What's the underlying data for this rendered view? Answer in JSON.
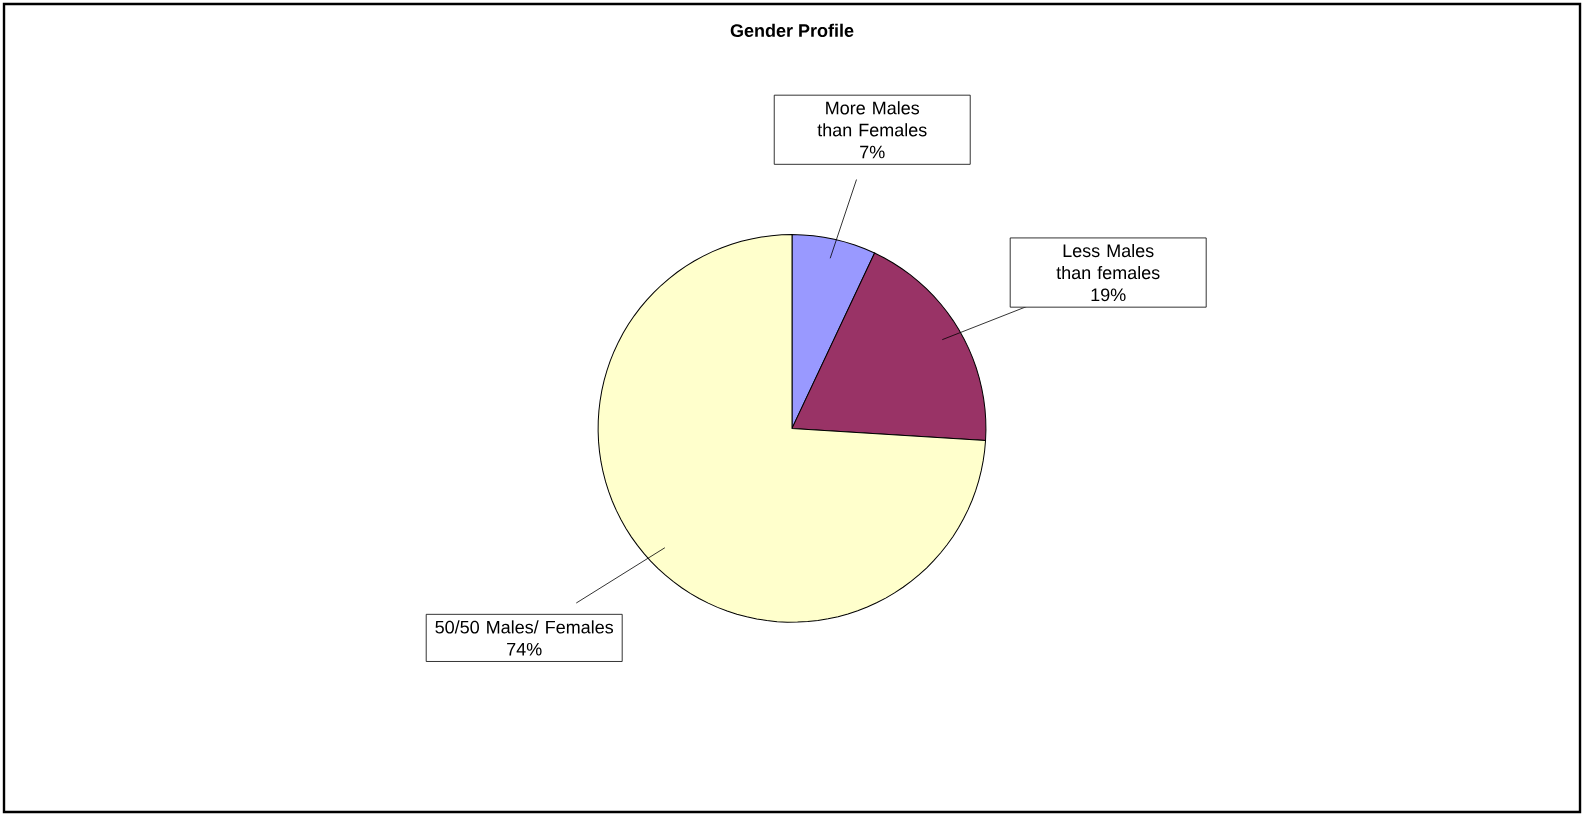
{
  "chart_data": {
    "type": "pie",
    "title": "Gender Profile",
    "categories": [
      "More Males than Females",
      "Less Males than females",
      "50/50 Males/ Females"
    ],
    "values": [
      7,
      19,
      74
    ],
    "colors": [
      "#9999ff",
      "#993366",
      "#ffffcc"
    ],
    "value_labels": [
      "7%",
      "19%",
      "74%"
    ]
  }
}
